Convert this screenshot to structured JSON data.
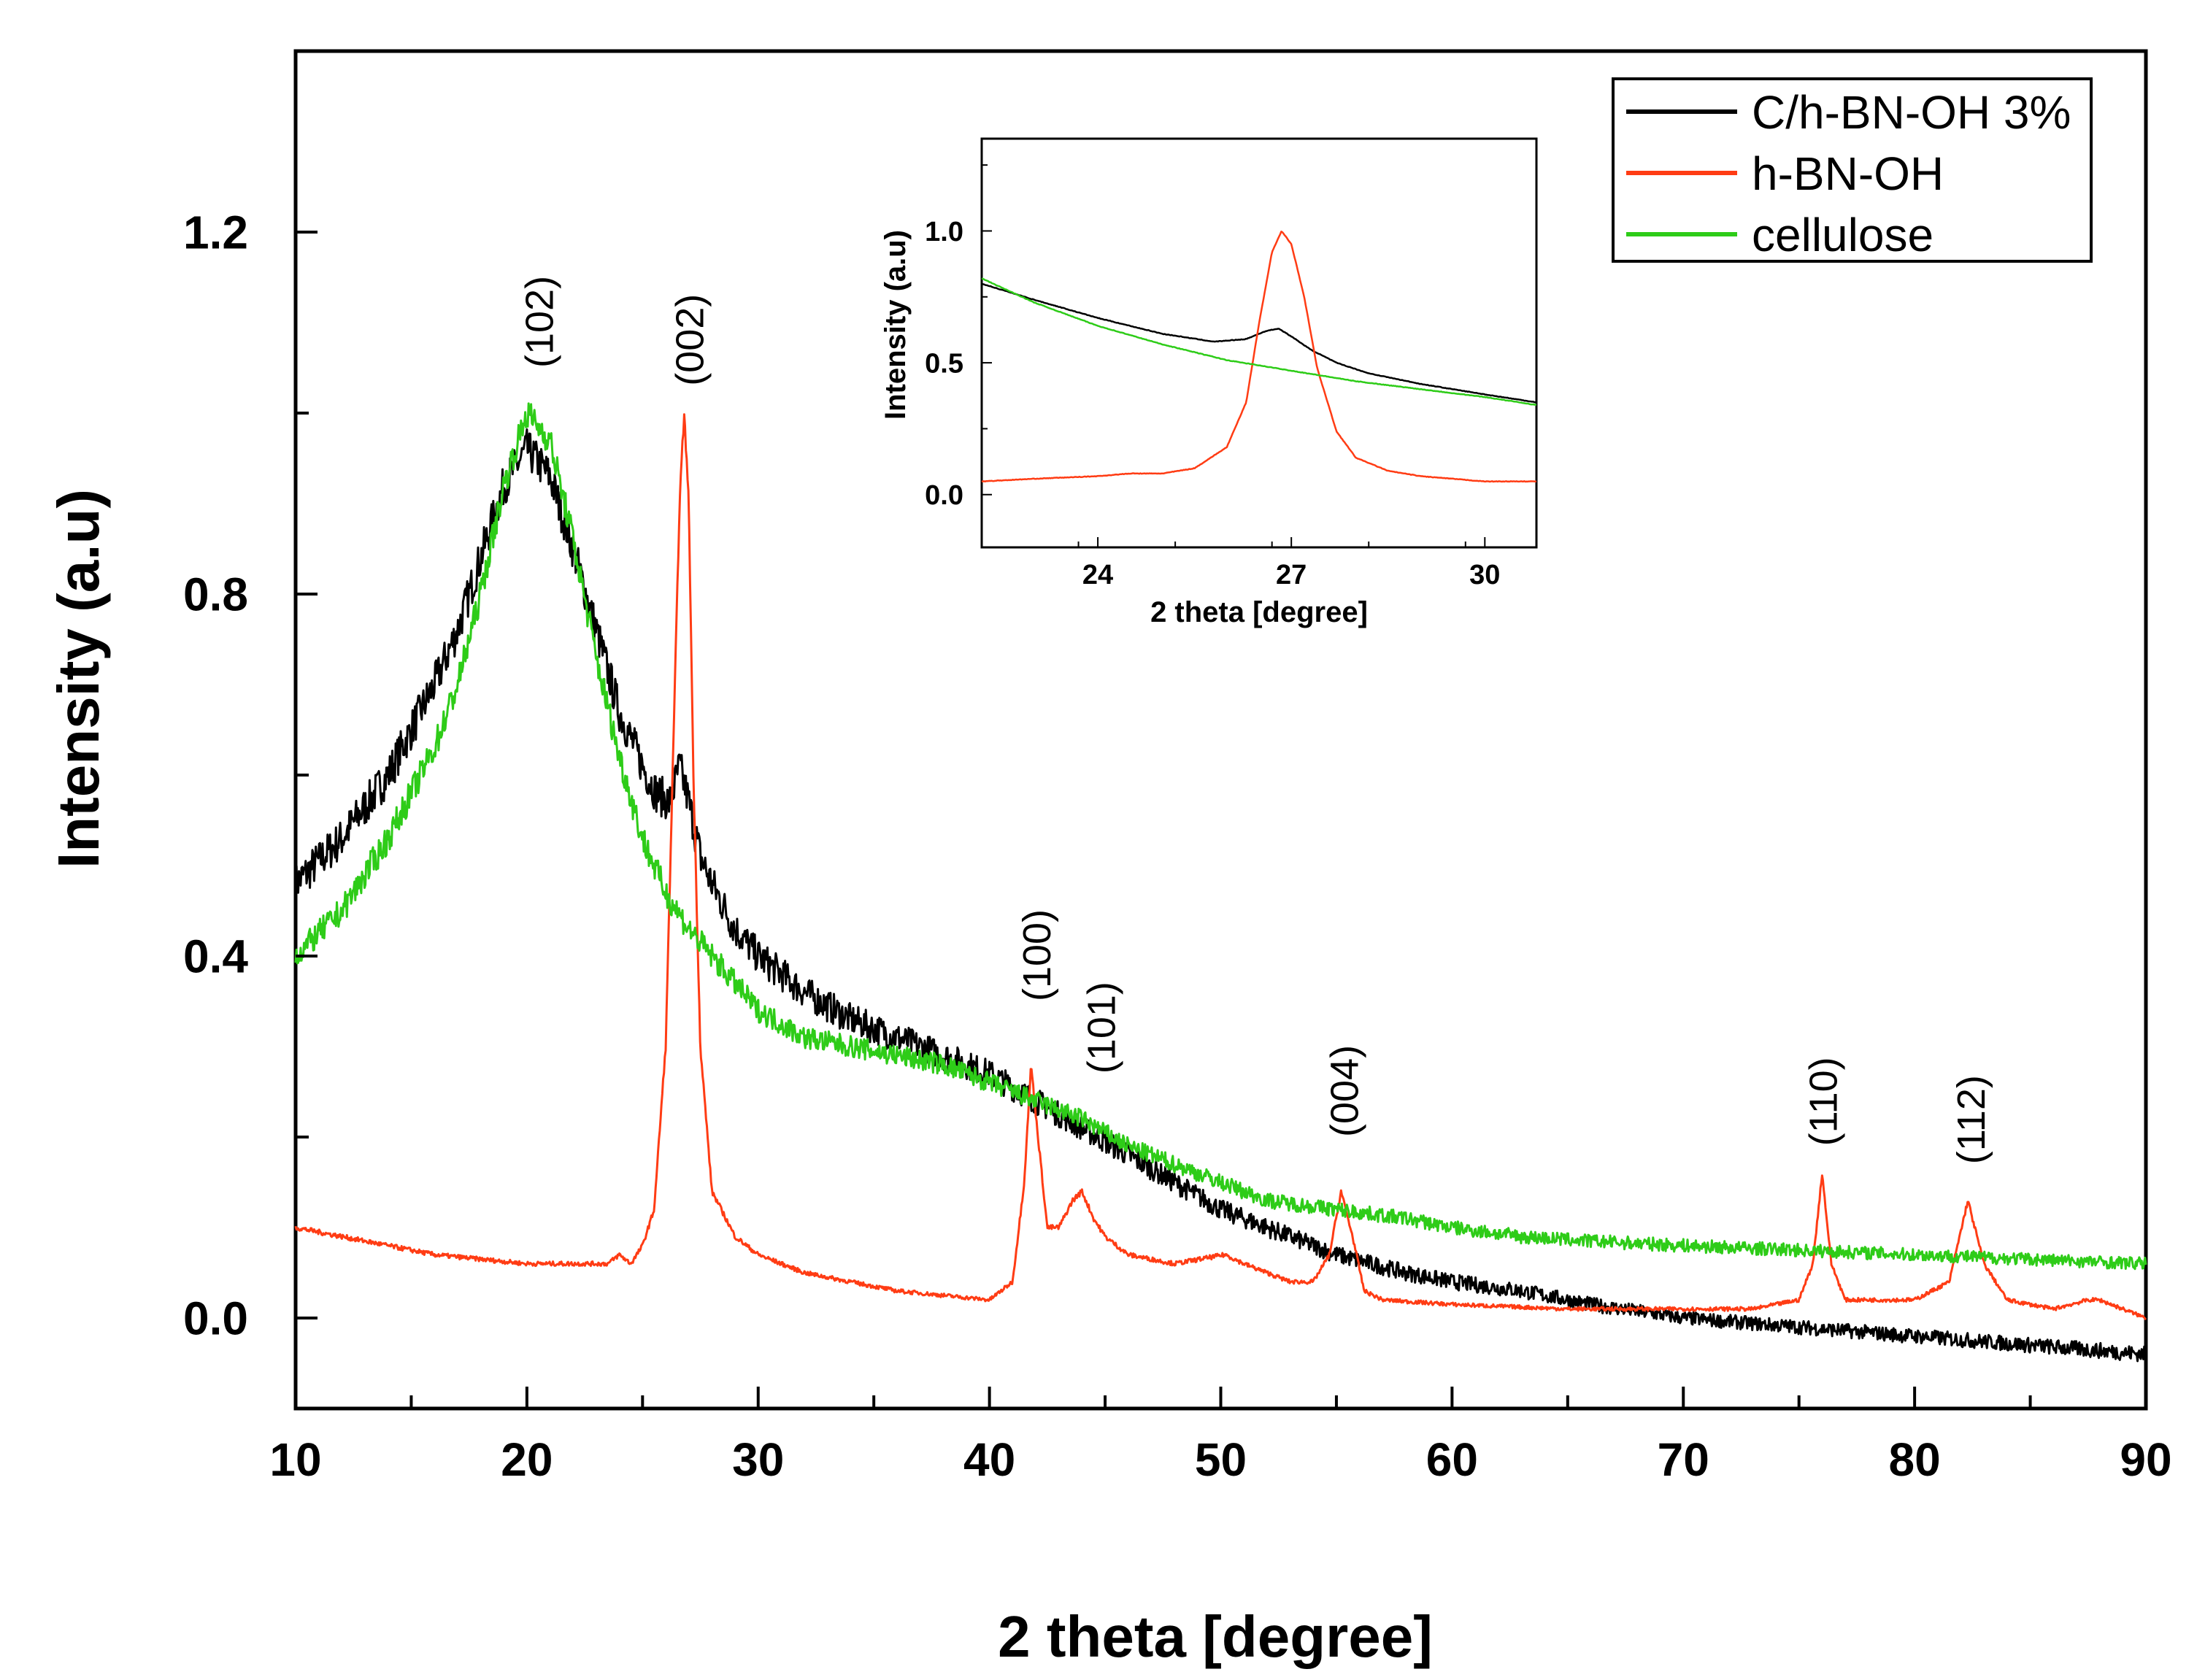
{
  "chart_data": [
    {
      "type": "line",
      "role": "main",
      "title": "",
      "xlabel": "2 theta [degree]",
      "ylabel": "Intensity (a.u)",
      "xlim": [
        10,
        90
      ],
      "ylim": [
        -0.1,
        1.4
      ],
      "xticks": [
        10,
        20,
        30,
        40,
        50,
        60,
        70,
        80,
        90
      ],
      "xtick_labels": [
        "10",
        "20",
        "30",
        "40",
        "50",
        "60",
        "70",
        "80",
        "90"
      ],
      "yticks": [
        0.0,
        0.4,
        0.8,
        1.2
      ],
      "ytick_labels": [
        "0.0",
        "0.4",
        "0.8",
        "1.2"
      ],
      "grid": false,
      "legend_position": "top-right",
      "series": [
        {
          "name": "C/h-BN-OH 3%",
          "color": "#000000",
          "x": [
            10,
            12,
            14,
            16,
            17,
            18,
            19,
            20,
            21,
            22,
            23,
            24,
            25,
            25.6,
            26.2,
            26.6,
            27.0,
            27.5,
            28,
            29,
            30,
            32,
            34,
            36,
            38,
            40,
            42,
            44,
            46,
            48,
            50,
            52,
            55,
            58,
            60,
            63,
            66,
            70,
            75,
            80,
            85,
            90
          ],
          "y": [
            0.48,
            0.53,
            0.6,
            0.7,
            0.76,
            0.84,
            0.92,
            0.96,
            0.93,
            0.85,
            0.76,
            0.67,
            0.61,
            0.58,
            0.57,
            0.61,
            0.57,
            0.51,
            0.48,
            0.43,
            0.4,
            0.36,
            0.33,
            0.31,
            0.29,
            0.27,
            0.24,
            0.21,
            0.18,
            0.15,
            0.12,
            0.1,
            0.07,
            0.05,
            0.04,
            0.03,
            0.015,
            0.0,
            -0.01,
            -0.02,
            -0.03,
            -0.04
          ]
        },
        {
          "name": "h-BN-OH",
          "color": "#ff3c14",
          "x": [
            10,
            12,
            14,
            16,
            18,
            20,
            22,
            23.5,
            24,
            24.5,
            25,
            25.5,
            26,
            26.3,
            26.6,
            26.8,
            27.0,
            27.2,
            27.5,
            28,
            29,
            30,
            32,
            34,
            36,
            38,
            40,
            41,
            41.5,
            41.8,
            42.1,
            42.5,
            43,
            43.6,
            44.0,
            44.5,
            45,
            46,
            48,
            50.2,
            51,
            52,
            53,
            54,
            54.7,
            55.2,
            55.7,
            56.2,
            57,
            60,
            65,
            70,
            73,
            75,
            75.6,
            76.0,
            76.4,
            77,
            78,
            80,
            81.5,
            82.3,
            83,
            84,
            86,
            87.5,
            88,
            89,
            90
          ],
          "y": [
            0.1,
            0.09,
            0.08,
            0.07,
            0.065,
            0.06,
            0.06,
            0.06,
            0.07,
            0.06,
            0.08,
            0.12,
            0.3,
            0.6,
            0.9,
            1.0,
            0.9,
            0.6,
            0.3,
            0.14,
            0.09,
            0.07,
            0.05,
            0.04,
            0.03,
            0.025,
            0.02,
            0.04,
            0.15,
            0.28,
            0.2,
            0.1,
            0.1,
            0.13,
            0.14,
            0.11,
            0.09,
            0.07,
            0.06,
            0.07,
            0.06,
            0.05,
            0.04,
            0.04,
            0.07,
            0.14,
            0.09,
            0.03,
            0.02,
            0.015,
            0.01,
            0.01,
            0.01,
            0.02,
            0.06,
            0.16,
            0.06,
            0.02,
            0.02,
            0.02,
            0.04,
            0.13,
            0.06,
            0.02,
            0.01,
            0.02,
            0.02,
            0.01,
            0.0
          ]
        },
        {
          "name": "cellulose",
          "color": "#2ecc18",
          "x": [
            10,
            12,
            14,
            16,
            17,
            18,
            19,
            20,
            21,
            22,
            23,
            24,
            25,
            26,
            27,
            28,
            29,
            30,
            32,
            34,
            36,
            38,
            40,
            42,
            44,
            46,
            48,
            50,
            52,
            55,
            58,
            60,
            63,
            66,
            70,
            75,
            80,
            85,
            90
          ],
          "y": [
            0.4,
            0.45,
            0.53,
            0.63,
            0.7,
            0.8,
            0.92,
            1.0,
            0.97,
            0.86,
            0.73,
            0.62,
            0.53,
            0.47,
            0.43,
            0.4,
            0.37,
            0.34,
            0.31,
            0.3,
            0.29,
            0.28,
            0.26,
            0.24,
            0.22,
            0.19,
            0.17,
            0.15,
            0.13,
            0.12,
            0.11,
            0.1,
            0.09,
            0.085,
            0.08,
            0.075,
            0.07,
            0.065,
            0.06
          ]
        }
      ],
      "annotations": [
        {
          "text": "(102)",
          "x": 20.5,
          "y": 1.05
        },
        {
          "text": "(002)",
          "x": 27.0,
          "y": 1.03
        },
        {
          "text": "(100)",
          "x": 42.0,
          "y": 0.35
        },
        {
          "text": "(101)",
          "x": 44.8,
          "y": 0.27
        },
        {
          "text": "(004)",
          "x": 55.3,
          "y": 0.2
        },
        {
          "text": "(110)",
          "x": 76.0,
          "y": 0.19
        },
        {
          "text": "(112)",
          "x": 82.4,
          "y": 0.17
        }
      ]
    },
    {
      "type": "line",
      "role": "inset",
      "title": "",
      "xlabel": "2 theta [degree]",
      "ylabel": "Intensity (a.u)",
      "xlim": [
        22.2,
        30.8
      ],
      "ylim": [
        -0.2,
        1.35
      ],
      "xticks": [
        24,
        27,
        30
      ],
      "xtick_labels": [
        "24",
        "27",
        "30"
      ],
      "yticks": [
        0.0,
        0.5,
        1.0
      ],
      "ytick_labels": [
        "0.0",
        "0.5",
        "1.0"
      ],
      "grid": false,
      "series": [
        {
          "name": "C/h-BN-OH 3%",
          "color": "#000000",
          "x": [
            22.2,
            23,
            24,
            25,
            25.8,
            26.3,
            26.6,
            26.8,
            27.0,
            27.3,
            27.7,
            28.2,
            29,
            30,
            30.8
          ],
          "y": [
            0.8,
            0.74,
            0.67,
            0.61,
            0.58,
            0.59,
            0.62,
            0.63,
            0.6,
            0.55,
            0.5,
            0.46,
            0.42,
            0.38,
            0.35
          ]
        },
        {
          "name": "h-BN-OH",
          "color": "#ff3c14",
          "x": [
            22.2,
            23,
            24,
            24.5,
            25,
            25.5,
            26,
            26.3,
            26.5,
            26.7,
            26.85,
            27.0,
            27.2,
            27.4,
            27.7,
            28,
            28.5,
            29,
            30,
            30.8
          ],
          "y": [
            0.05,
            0.06,
            0.07,
            0.08,
            0.08,
            0.1,
            0.18,
            0.35,
            0.65,
            0.92,
            1.0,
            0.95,
            0.75,
            0.48,
            0.24,
            0.14,
            0.09,
            0.07,
            0.05,
            0.05
          ]
        },
        {
          "name": "cellulose",
          "color": "#2ecc18",
          "x": [
            22.2,
            23,
            24,
            25,
            26,
            27,
            28,
            29,
            30,
            30.8
          ],
          "y": [
            0.82,
            0.73,
            0.64,
            0.57,
            0.51,
            0.47,
            0.43,
            0.4,
            0.37,
            0.34
          ]
        }
      ]
    }
  ]
}
